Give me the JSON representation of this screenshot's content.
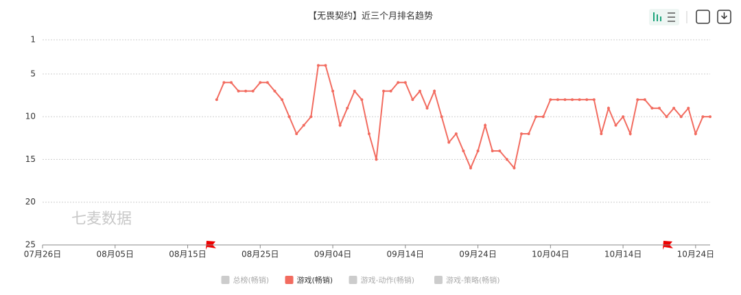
{
  "chart_data": {
    "type": "line",
    "title": "【无畏契约】近三个月排名趋势",
    "categories": [
      "07月26日",
      null,
      null,
      null,
      null,
      null,
      null,
      null,
      null,
      null,
      "08月05日",
      null,
      null,
      null,
      null,
      null,
      null,
      null,
      null,
      null,
      "08月15日",
      null,
      null,
      null,
      null,
      null,
      null,
      null,
      null,
      null,
      "08月25日",
      null,
      null,
      null,
      null,
      null,
      null,
      null,
      null,
      null,
      "09月04日",
      null,
      null,
      null,
      null,
      null,
      null,
      null,
      null,
      null,
      "09月14日",
      null,
      null,
      null,
      null,
      null,
      null,
      null,
      null,
      null,
      "09月24日",
      null,
      null,
      null,
      null,
      null,
      null,
      null,
      null,
      null,
      "10月04日",
      null,
      null,
      null,
      null,
      null,
      null,
      null,
      null,
      null,
      "10月14日",
      null,
      null,
      null,
      null,
      null,
      null,
      null,
      null,
      null,
      "10月24日",
      null,
      null
    ],
    "series": [
      {
        "name": "总榜(畅销)",
        "color": "#cccccc",
        "visible": false
      },
      {
        "name": "游戏(畅销)",
        "color": "#f26b5f",
        "visible": true,
        "values": [
          null,
          null,
          null,
          null,
          null,
          null,
          null,
          null,
          null,
          null,
          null,
          null,
          null,
          null,
          null,
          null,
          null,
          null,
          null,
          null,
          null,
          null,
          null,
          null,
          8,
          6,
          6,
          7,
          7,
          7,
          6,
          6,
          7,
          8,
          10,
          12,
          11,
          10,
          4,
          4,
          7,
          11,
          9,
          7,
          8,
          12,
          15,
          7,
          7,
          6,
          6,
          8,
          7,
          9,
          7,
          10,
          13,
          12,
          14,
          16,
          14,
          11,
          14,
          14,
          15,
          16,
          12,
          12,
          10,
          10,
          8,
          8,
          8,
          8,
          8,
          8,
          8,
          12,
          9,
          11,
          10,
          12,
          8,
          8,
          9,
          9,
          10,
          9,
          10,
          9,
          12,
          10,
          10
        ]
      },
      {
        "name": "游戏-动作(畅销)",
        "color": "#cccccc",
        "visible": false
      },
      {
        "name": "游戏-策略(畅销)",
        "color": "#cccccc",
        "visible": false
      }
    ],
    "ylim": [
      25,
      1
    ],
    "yticks": [
      1,
      5,
      10,
      15,
      20,
      25
    ],
    "grid": true,
    "watermark": "七麦数据"
  }
}
